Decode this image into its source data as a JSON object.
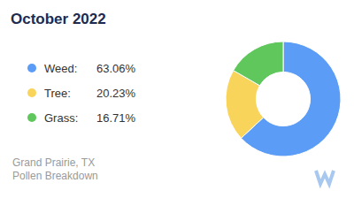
{
  "chart_data": {
    "type": "pie",
    "title": "October 2022",
    "categories": [
      "Weed:",
      "Tree:",
      "Grass:"
    ],
    "values": [
      63.06,
      20.23,
      16.71
    ],
    "value_labels": [
      "63.06%",
      "20.23%",
      "16.71%"
    ],
    "colors": [
      "#5b9cf6",
      "#f9d45b",
      "#5fc75c"
    ],
    "legend": "left",
    "annotations": [
      "Grand Prairie, TX",
      "Pollen Breakdown"
    ]
  }
}
